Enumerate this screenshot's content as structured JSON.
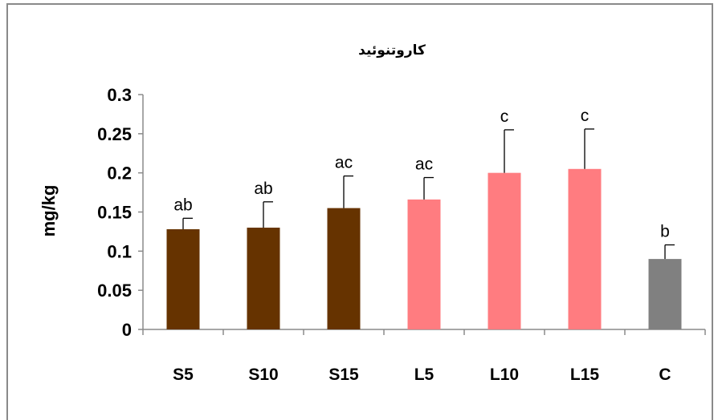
{
  "chart_data": {
    "type": "bar",
    "title": "کاروتنوئید",
    "xlabel": "",
    "ylabel": "mg/kg",
    "ylim": [
      0,
      0.3
    ],
    "yticks": [
      "0",
      "0.05",
      "0.1",
      "0.15",
      "0.2",
      "0.25",
      "0.3"
    ],
    "categories": [
      "S5",
      "S10",
      "S15",
      "L5",
      "L10",
      "L15",
      "C"
    ],
    "values": [
      0.128,
      0.13,
      0.155,
      0.166,
      0.2,
      0.205,
      0.09
    ],
    "errors": [
      0.014,
      0.033,
      0.041,
      0.028,
      0.055,
      0.051,
      0.018
    ],
    "labels": [
      "ab",
      "ab",
      "ac",
      "ac",
      "c",
      "c",
      "b"
    ],
    "colors": [
      "#663300",
      "#663300",
      "#663300",
      "#ff7c80",
      "#ff7c80",
      "#ff7c80",
      "#808080"
    ],
    "grid": false,
    "legend": "none"
  }
}
